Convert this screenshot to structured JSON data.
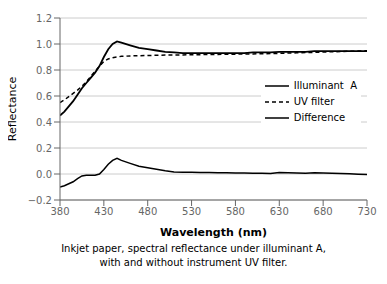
{
  "chart_data": {
    "type": "line",
    "xlabel": "Wavelength (nm)",
    "ylabel": "Reflectance",
    "annotations": [
      "Inkjet paper, spectral reflectance under illuminant A,",
      "with and without instrument UV filter."
    ],
    "xlim": [
      380,
      730
    ],
    "ylim": [
      -0.2,
      1.2
    ],
    "xticks": [
      380,
      430,
      480,
      530,
      580,
      630,
      680,
      730
    ],
    "yticks": [
      {
        "value": -0.2,
        "label": "−0.2"
      },
      {
        "value": 0.0,
        "label": "0.0"
      },
      0.2,
      0.4,
      0.6,
      0.8,
      {
        "value": 1.0,
        "label": "1.0"
      },
      1.2
    ],
    "grid": "y",
    "legend": "right",
    "x": [
      380,
      385,
      390,
      395,
      400,
      405,
      410,
      415,
      420,
      425,
      430,
      435,
      440,
      445,
      450,
      460,
      470,
      480,
      490,
      500,
      510,
      520,
      530,
      540,
      550,
      560,
      570,
      580,
      590,
      600,
      610,
      620,
      630,
      640,
      650,
      660,
      670,
      680,
      690,
      700,
      710,
      720,
      730
    ],
    "series": [
      {
        "name": "Illuminant  A",
        "color": "#000000",
        "line_style": "solid",
        "values": [
          0.45,
          0.48,
          0.52,
          0.56,
          0.61,
          0.66,
          0.7,
          0.74,
          0.78,
          0.83,
          0.9,
          0.96,
          1.0,
          1.02,
          1.01,
          0.99,
          0.97,
          0.96,
          0.95,
          0.94,
          0.935,
          0.93,
          0.93,
          0.93,
          0.93,
          0.93,
          0.93,
          0.93,
          0.93,
          0.935,
          0.935,
          0.935,
          0.94,
          0.94,
          0.94,
          0.94,
          0.945,
          0.945,
          0.945,
          0.945,
          0.945,
          0.945,
          0.945
        ]
      },
      {
        "name": "UV filter",
        "color": "#000000",
        "line_style": "dashed",
        "values": [
          0.55,
          0.57,
          0.595,
          0.62,
          0.645,
          0.675,
          0.71,
          0.75,
          0.79,
          0.83,
          0.865,
          0.885,
          0.895,
          0.9,
          0.905,
          0.908,
          0.91,
          0.912,
          0.913,
          0.915,
          0.915,
          0.916,
          0.917,
          0.918,
          0.919,
          0.92,
          0.921,
          0.922,
          0.923,
          0.924,
          0.925,
          0.926,
          0.928,
          0.93,
          0.932,
          0.934,
          0.936,
          0.938,
          0.94,
          0.942,
          0.944,
          0.946,
          0.948
        ]
      },
      {
        "name": "Difference",
        "color": "#000000",
        "line_style": "solid",
        "values": [
          -0.1,
          -0.09,
          -0.075,
          -0.06,
          -0.035,
          -0.015,
          -0.01,
          -0.01,
          -0.01,
          0.0,
          0.035,
          0.075,
          0.105,
          0.12,
          0.105,
          0.082,
          0.06,
          0.048,
          0.037,
          0.025,
          0.015,
          0.014,
          0.013,
          0.012,
          0.011,
          0.01,
          0.009,
          0.008,
          0.007,
          0.006,
          0.005,
          0.004,
          0.012,
          0.01,
          0.008,
          0.006,
          0.009,
          0.007,
          0.005,
          0.003,
          0.001,
          -0.001,
          -0.003
        ]
      }
    ]
  }
}
